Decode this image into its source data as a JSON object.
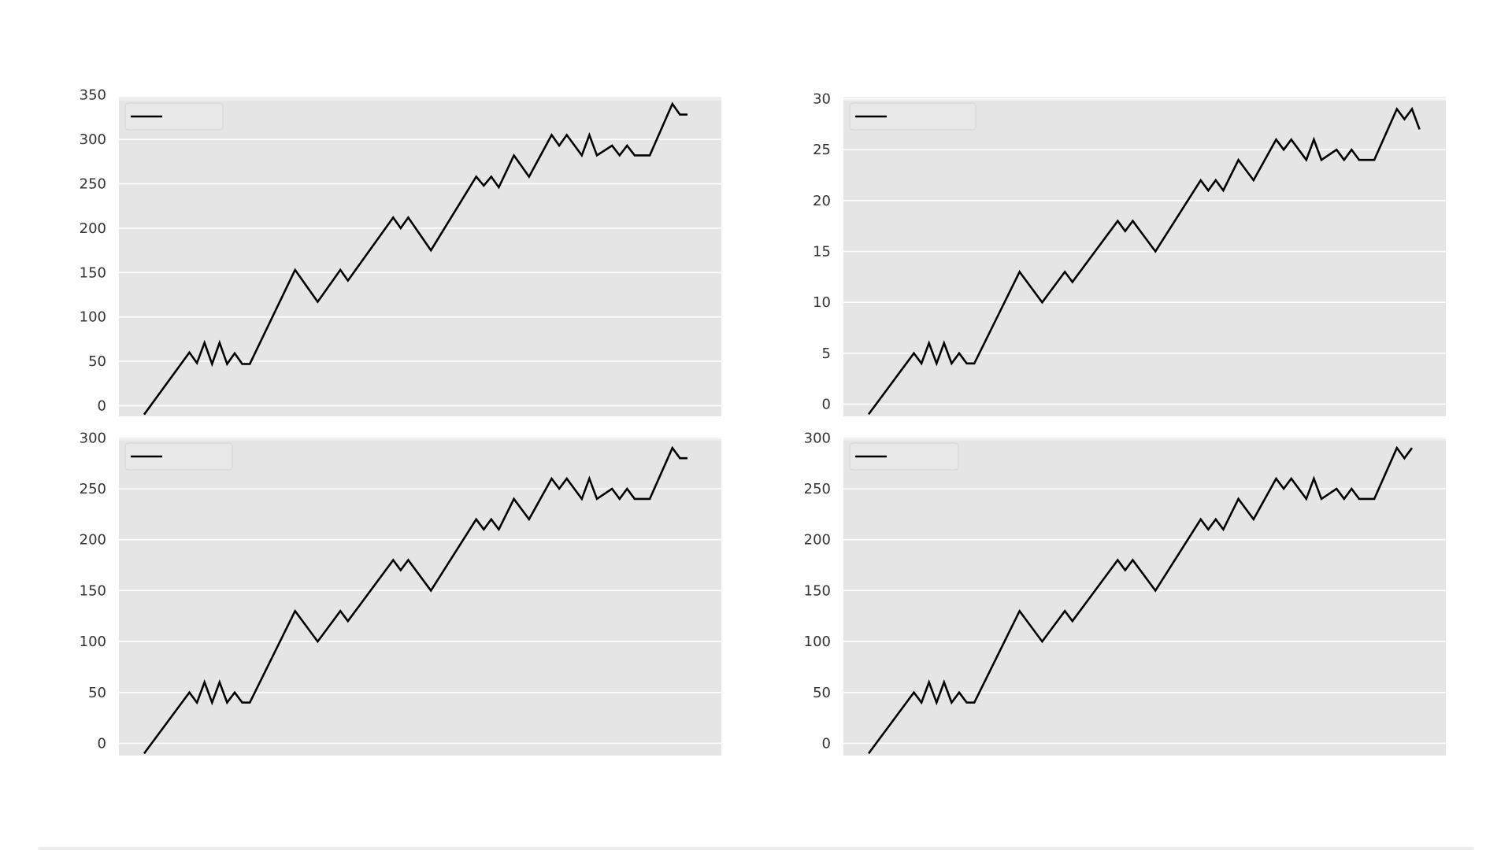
{
  "chart_data": [
    {
      "type": "line",
      "position": "top-left",
      "ylim": [
        -12,
        348
      ],
      "yticks": [
        "0",
        "50",
        "100",
        "150",
        "200",
        "250",
        "300",
        "350"
      ],
      "ytick_values": [
        0,
        50,
        100,
        150,
        200,
        250,
        300,
        350
      ],
      "grid": true,
      "legend": {
        "placement": "top-left",
        "entries": [
          ""
        ]
      },
      "line_color": "#000000",
      "background": "#e5e5e5",
      "series": [
        {
          "x": [
            0,
            6,
            7,
            8,
            9,
            10,
            11,
            12,
            13,
            14,
            20,
            23,
            26,
            27,
            33,
            34,
            35,
            38,
            44,
            45,
            46,
            47,
            49,
            51,
            54,
            55,
            56,
            58,
            59,
            60,
            62,
            63,
            64,
            65,
            66,
            67,
            70,
            71,
            72
          ],
          "values": [
            -10,
            60,
            48,
            71,
            47,
            71,
            47,
            59,
            47,
            47,
            153,
            117,
            153,
            141,
            212,
            200,
            212,
            175,
            258,
            248,
            258,
            246,
            282,
            258,
            305,
            293,
            305,
            282,
            305,
            282,
            293,
            282,
            293,
            282,
            282,
            282,
            340,
            328,
            328
          ]
        }
      ]
    },
    {
      "type": "line",
      "position": "top-right",
      "ylim": [
        -1.2,
        30.2
      ],
      "yticks": [
        "0",
        "5",
        "10",
        "15",
        "20",
        "25",
        "30"
      ],
      "ytick_values": [
        0,
        5,
        10,
        15,
        20,
        25,
        30
      ],
      "grid": true,
      "legend": {
        "placement": "top-left",
        "entries": [
          ""
        ]
      },
      "line_color": "#000000",
      "background": "#e5e5e5",
      "series": [
        {
          "x": [
            0,
            6,
            7,
            8,
            9,
            10,
            11,
            12,
            13,
            14,
            20,
            23,
            26,
            27,
            33,
            34,
            35,
            38,
            44,
            45,
            46,
            47,
            49,
            51,
            54,
            55,
            56,
            58,
            59,
            60,
            62,
            63,
            64,
            65,
            66,
            67,
            70,
            71,
            72,
            73
          ],
          "values": [
            -1,
            5,
            4,
            6,
            4,
            6,
            4,
            5,
            4,
            4,
            13,
            10,
            13,
            12,
            18,
            17,
            18,
            15,
            22,
            21,
            22,
            21,
            24,
            22,
            26,
            25,
            26,
            24,
            26,
            24,
            25,
            24,
            25,
            24,
            24,
            24,
            29,
            28,
            29,
            27
          ]
        }
      ]
    },
    {
      "type": "line",
      "position": "bottom-left",
      "ylim": [
        -12,
        301
      ],
      "yticks": [
        "0",
        "50",
        "100",
        "150",
        "200",
        "250",
        "300"
      ],
      "ytick_values": [
        0,
        50,
        100,
        150,
        200,
        250,
        300
      ],
      "grid": true,
      "legend": {
        "placement": "top-left",
        "entries": [
          ""
        ]
      },
      "line_color": "#000000",
      "background": "#e5e5e5",
      "series": [
        {
          "x": [
            0,
            6,
            7,
            8,
            9,
            10,
            11,
            12,
            13,
            14,
            20,
            23,
            26,
            27,
            33,
            34,
            35,
            38,
            44,
            45,
            46,
            47,
            49,
            51,
            54,
            55,
            56,
            58,
            59,
            60,
            62,
            63,
            64,
            65,
            66,
            67,
            70,
            71,
            72
          ],
          "values": [
            -10,
            50,
            40,
            60,
            40,
            60,
            40,
            50,
            40,
            40,
            130,
            100,
            130,
            120,
            180,
            170,
            180,
            150,
            220,
            210,
            220,
            210,
            240,
            220,
            260,
            250,
            260,
            240,
            260,
            240,
            250,
            240,
            250,
            240,
            240,
            240,
            290,
            280,
            280
          ]
        }
      ]
    },
    {
      "type": "line",
      "position": "bottom-right",
      "ylim": [
        -12,
        301
      ],
      "yticks": [
        "0",
        "50",
        "100",
        "150",
        "200",
        "250",
        "300"
      ],
      "ytick_values": [
        0,
        50,
        100,
        150,
        200,
        250,
        300
      ],
      "grid": true,
      "legend": {
        "placement": "top-left",
        "entries": [
          ""
        ]
      },
      "line_color": "#000000",
      "background": "#e5e5e5",
      "series": [
        {
          "x": [
            0,
            6,
            7,
            8,
            9,
            10,
            11,
            12,
            13,
            14,
            20,
            23,
            26,
            27,
            33,
            34,
            35,
            38,
            44,
            45,
            46,
            47,
            49,
            51,
            54,
            55,
            56,
            58,
            59,
            60,
            62,
            63,
            64,
            65,
            66,
            67,
            70,
            71,
            72
          ],
          "values": [
            -10,
            50,
            40,
            60,
            40,
            60,
            40,
            50,
            40,
            40,
            130,
            100,
            130,
            120,
            180,
            170,
            180,
            150,
            220,
            210,
            220,
            210,
            240,
            220,
            260,
            250,
            260,
            240,
            260,
            240,
            250,
            240,
            250,
            240,
            240,
            240,
            290,
            280,
            290
          ]
        }
      ]
    }
  ]
}
